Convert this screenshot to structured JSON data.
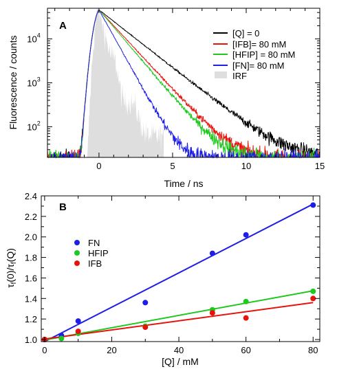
{
  "chart_data": [
    {
      "type": "line",
      "panel_label": "A",
      "xlabel": "Time / ns",
      "ylabel": "Fluorescence / counts",
      "xlim": [
        -3.5,
        15
      ],
      "ylim_log": [
        20,
        50000
      ],
      "y_scale": "log",
      "x_ticks": [
        0,
        5,
        10,
        15
      ],
      "y_ticks": [
        {
          "value": 100,
          "label": "10",
          "exp": "2"
        },
        {
          "value": 1000,
          "label": "10",
          "exp": "3"
        },
        {
          "value": 10000,
          "label": "10",
          "exp": "4"
        }
      ],
      "grid": false,
      "legend_position": "top-right",
      "series": [
        {
          "name": "[Q] = 0",
          "color": "#000000",
          "lifetime_ns": 1.65
        },
        {
          "name": "[IFB]= 80 mM",
          "color": "#e8120c",
          "lifetime_ns": 1.2
        },
        {
          "name": "[HFIP] = 80 mM",
          "color": "#1ec81e",
          "lifetime_ns": 1.1
        },
        {
          "name": "[FN]= 80 mM",
          "color": "#1e1ee6",
          "lifetime_ns": 0.72
        },
        {
          "name": "IRF",
          "color": "#dedede"
        }
      ]
    },
    {
      "type": "scatter",
      "panel_label": "B",
      "xlabel": "[Q] / mM",
      "ylabel_main": "τ",
      "ylabel_sub": "f",
      "ylabel_mid": "(0)/τ",
      "ylabel_sub2": "f",
      "ylabel_tail": "(Q)",
      "xlim": [
        -1,
        82
      ],
      "ylim": [
        0.98,
        2.4
      ],
      "x_ticks": [
        0,
        20,
        40,
        60,
        80
      ],
      "y_ticks": [
        1.0,
        1.2,
        1.4,
        1.6,
        1.8,
        2.0,
        2.2,
        2.4
      ],
      "grid": false,
      "legend_position": "top-left",
      "series": [
        {
          "name": "FN",
          "color": "#1e1ee6",
          "x": [
            0,
            5,
            10,
            30,
            50,
            60,
            80
          ],
          "y": [
            1.0,
            1.04,
            1.18,
            1.36,
            1.84,
            2.02,
            2.31
          ],
          "fit": [
            0.98,
            2.32
          ]
        },
        {
          "name": "HFIP",
          "color": "#1ec81e",
          "x": [
            0,
            5,
            10,
            30,
            50,
            60,
            80
          ],
          "y": [
            1.0,
            1.01,
            1.06,
            1.13,
            1.29,
            1.37,
            1.47
          ],
          "fit": [
            0.995,
            1.475
          ]
        },
        {
          "name": "IFB",
          "color": "#e8120c",
          "x": [
            0,
            10,
            30,
            50,
            60,
            80
          ],
          "y": [
            1.0,
            1.08,
            1.12,
            1.26,
            1.21,
            1.4
          ],
          "fit": [
            1.005,
            1.36
          ]
        }
      ]
    }
  ]
}
